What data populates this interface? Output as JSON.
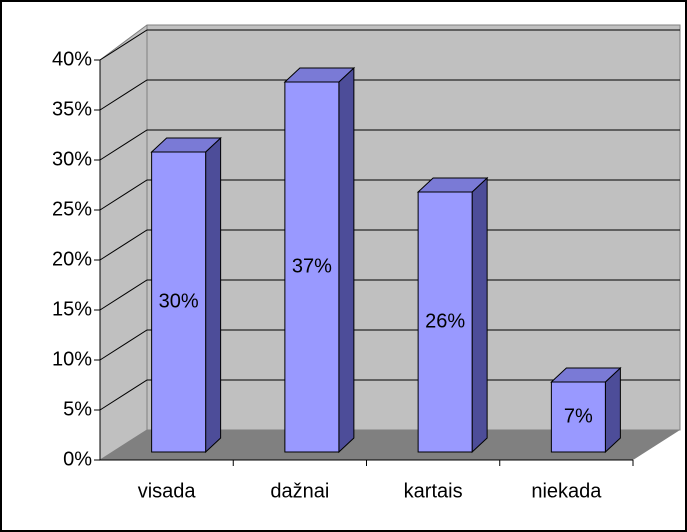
{
  "chart_data": {
    "type": "bar",
    "title": null,
    "categories": [
      "visada",
      "dažnai",
      "kartais",
      "niekada"
    ],
    "values": [
      30,
      37,
      26,
      7
    ],
    "value_labels": [
      "30%",
      "37%",
      "26%",
      "7%"
    ],
    "color": "#9999ff",
    "ylim": [
      0,
      40
    ],
    "yticks": [
      {
        "value": 0,
        "label": "0%"
      },
      {
        "value": 5,
        "label": "5%"
      },
      {
        "value": 10,
        "label": "10%"
      },
      {
        "value": 15,
        "label": "15%"
      },
      {
        "value": 20,
        "label": "20%"
      },
      {
        "value": 25,
        "label": "25%"
      },
      {
        "value": 30,
        "label": "30%"
      },
      {
        "value": 35,
        "label": "35%"
      },
      {
        "value": 40,
        "label": "40%"
      }
    ],
    "grid": true
  }
}
